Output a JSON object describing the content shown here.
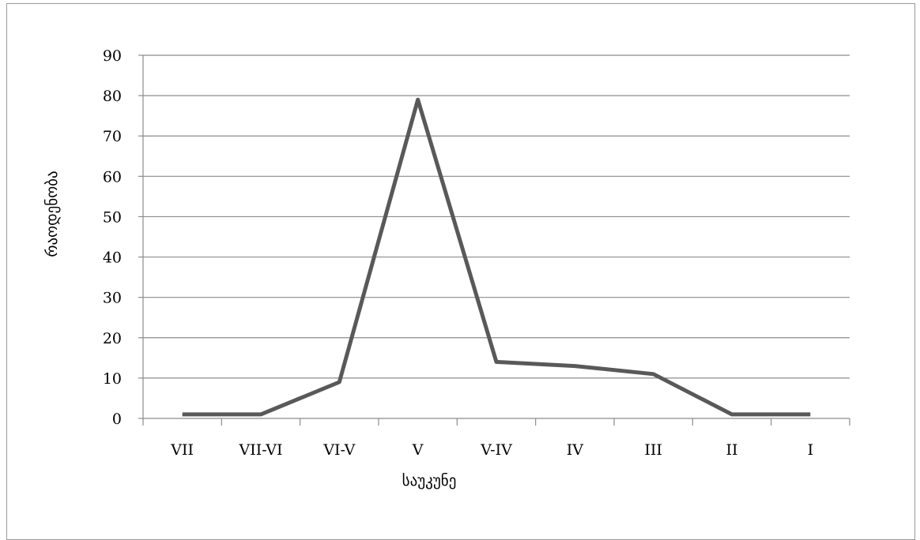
{
  "chart_data": {
    "type": "line",
    "title": "",
    "xlabel": "საუკუნე",
    "ylabel": "რაოდენობა",
    "categories": [
      "VII",
      "VII-VI",
      "VI-V",
      "V",
      "V-IV",
      "IV",
      "III",
      "II",
      "I"
    ],
    "series": [
      {
        "values": [
          1,
          1,
          9,
          79,
          14,
          13,
          11,
          1,
          1
        ]
      }
    ],
    "ylim": [
      0,
      90
    ],
    "yticks": [
      0,
      10,
      20,
      30,
      40,
      50,
      60,
      70,
      80,
      90
    ],
    "grid": true,
    "legend": "none",
    "colors": {
      "line": "#595959",
      "grid": "#8c8c8c",
      "axis": "#8c8c8c",
      "border": "#9a9a9a"
    }
  }
}
